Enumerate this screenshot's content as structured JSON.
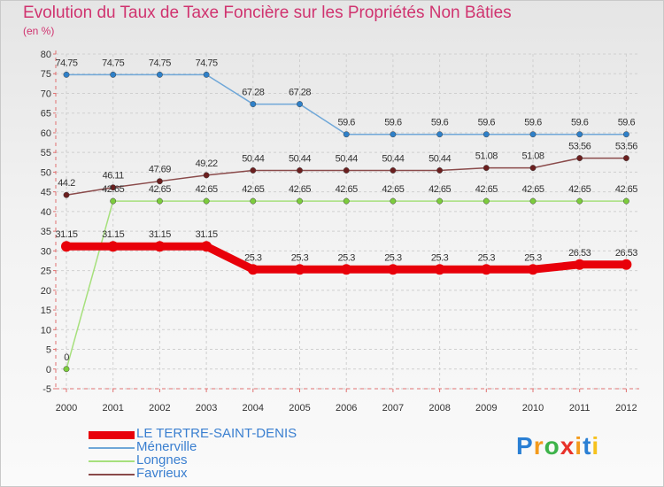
{
  "title": "Evolution du Taux de Taxe Foncière sur les Propriétés Non Bâties",
  "subtitle": "(en %)",
  "logo": {
    "letters": [
      "P",
      "r",
      "o",
      "x",
      "i",
      "t",
      "i"
    ],
    "colors": [
      "#2a7fd4",
      "#f39a1c",
      "#3db34a",
      "#e8322a",
      "#f39a1c",
      "#2a7fd4",
      "#f6c21d"
    ]
  },
  "legend": [
    {
      "label": "LE TERTRE-SAINT-DENIS",
      "color": "#e8000a",
      "thickness": 9
    },
    {
      "label": "Ménerville",
      "color": "#6fa7d8",
      "thickness": 2
    },
    {
      "label": "Longnes",
      "color": "#a6e07c",
      "thickness": 2
    },
    {
      "label": "Favrieux",
      "color": "#8a4a4a",
      "thickness": 2
    }
  ],
  "chart_data": {
    "type": "line",
    "title": "Evolution du Taux de Taxe Foncière sur les Propriétés Non Bâties",
    "ylabel": "(en %)",
    "xlabel": "",
    "ylim": [
      -5,
      80
    ],
    "yticks": [
      -5,
      0,
      5,
      10,
      15,
      20,
      25,
      30,
      35,
      40,
      45,
      50,
      55,
      60,
      65,
      70,
      75,
      80
    ],
    "x": [
      "2000",
      "2001",
      "2002",
      "2003",
      "2004",
      "2005",
      "2006",
      "2007",
      "2008",
      "2009",
      "2010",
      "2011",
      "2012"
    ],
    "grid": true,
    "series": [
      {
        "name": "Ménerville",
        "color": "#6fa7d8",
        "marker": "#2f80c8",
        "width": 1.5,
        "values": [
          74.75,
          74.75,
          74.75,
          74.75,
          67.28,
          67.28,
          59.6,
          59.6,
          59.6,
          59.6,
          59.6,
          59.6,
          59.6
        ],
        "labels": [
          "74.75",
          "74.75",
          "74.75",
          "74.75",
          "67.28",
          "67.28",
          "59.6",
          "59.6",
          "59.6",
          "59.6",
          "59.6",
          "59.6",
          "59.6"
        ]
      },
      {
        "name": "Favrieux",
        "color": "#8a4a4a",
        "marker": "#6b1f1f",
        "width": 1.5,
        "values": [
          44.2,
          46.11,
          47.69,
          49.22,
          50.44,
          50.44,
          50.44,
          50.44,
          50.44,
          51.08,
          51.08,
          53.56,
          53.56
        ],
        "labels": [
          "44.2",
          "46.11",
          "47.69",
          "49.22",
          "50.44",
          "50.44",
          "50.44",
          "50.44",
          "50.44",
          "51.08",
          "51.08",
          "53.56",
          "53.56"
        ]
      },
      {
        "name": "Longnes",
        "color": "#a6e07c",
        "marker": "#7ccc3c",
        "width": 1.5,
        "values": [
          0,
          42.65,
          42.65,
          42.65,
          42.65,
          42.65,
          42.65,
          42.65,
          42.65,
          42.65,
          42.65,
          42.65,
          42.65
        ],
        "labels": [
          "0",
          "42.65",
          "42.65",
          "42.65",
          "42.65",
          "42.65",
          "42.65",
          "42.65",
          "42.65",
          "42.65",
          "42.65",
          "42.65",
          "42.65"
        ]
      },
      {
        "name": "LE TERTRE-SAINT-DENIS",
        "color": "#e8000a",
        "marker": "#e8000a",
        "width": 9,
        "values": [
          31.15,
          31.15,
          31.15,
          31.15,
          25.3,
          25.3,
          25.3,
          25.3,
          25.3,
          25.3,
          25.3,
          26.53,
          26.53
        ],
        "labels": [
          "31.15",
          "31.15",
          "31.15",
          "31.15",
          "25.3",
          "25.3",
          "25.3",
          "25.3",
          "25.3",
          "25.3",
          "25.3",
          "26.53",
          "26.53"
        ]
      }
    ]
  }
}
